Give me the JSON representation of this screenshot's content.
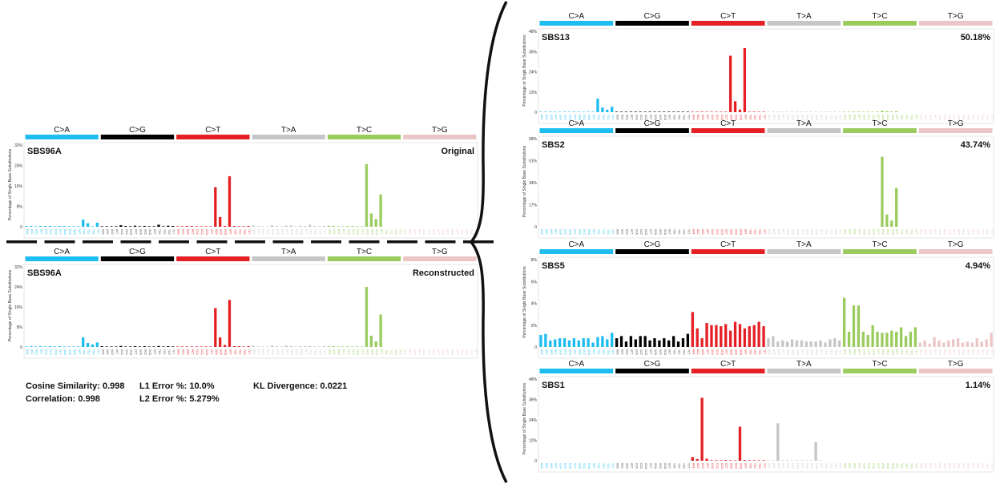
{
  "categories": [
    "C>A",
    "C>G",
    "C>T",
    "T>A",
    "T>C",
    "T>G"
  ],
  "category_colors": [
    "#1ebdf0",
    "#000000",
    "#e42025",
    "#c6c6c6",
    "#99cc5c",
    "#ecc6c6"
  ],
  "y_axis_label": "Percentage of Single Base Substitutions",
  "trinucleotide_contexts": [
    "ACA",
    "ACC",
    "ACG",
    "ACT",
    "CCA",
    "CCC",
    "CCG",
    "CCT",
    "GCA",
    "GCC",
    "GCG",
    "GCT",
    "TCA",
    "TCC",
    "TCG",
    "TCT"
  ],
  "metrics": {
    "cosine": "Cosine Similarity: 0.998",
    "correlation": "Correlation: 0.998",
    "l1": "L1 Error %: 10.0%",
    "l2": "L2 Error %: 5.279%",
    "kl": "KL Divergence: 0.0221"
  },
  "chart_data": [
    {
      "type": "bar",
      "id": "original",
      "title": "SBS96A",
      "label": "Original",
      "ylim": [
        0,
        32
      ],
      "yticks": [
        "0",
        "8%",
        "16%",
        "24%",
        "32%"
      ],
      "values": [
        0.3,
        0.3,
        0.2,
        0.3,
        0.3,
        0.3,
        0.2,
        0.3,
        0.3,
        0.2,
        0.2,
        0.2,
        2.8,
        1.4,
        0.2,
        1.6,
        0.2,
        0.2,
        0.2,
        0.2,
        0.6,
        0.3,
        0.2,
        0.4,
        0.2,
        0.3,
        0.2,
        0.2,
        0.8,
        0.2,
        0.4,
        0.3,
        0.2,
        0.2,
        0.3,
        0.3,
        0.2,
        0.2,
        0.2,
        0.2,
        15.5,
        3.8,
        0.3,
        19.8,
        0.3,
        0.2,
        0.2,
        0.3,
        0.5,
        0.2,
        0.2,
        0.2,
        0.6,
        0.3,
        0.2,
        0.5,
        0.5,
        0.2,
        0.4,
        0.3,
        0.8,
        0.3,
        0.2,
        0.3,
        0.4,
        0.3,
        0.2,
        0.2,
        0.3,
        0.3,
        0.2,
        0.2,
        24.5,
        5.2,
        3.0,
        12.7,
        0,
        0,
        0,
        0,
        0,
        0,
        0,
        0,
        0,
        0,
        0,
        0,
        0,
        0,
        0,
        0,
        0,
        0,
        0,
        0
      ]
    },
    {
      "type": "bar",
      "id": "reconstructed",
      "title": "SBS96A",
      "label": "Reconstructed",
      "ylim": [
        0,
        32
      ],
      "yticks": [
        "0",
        "8%",
        "16%",
        "24%",
        "32%"
      ],
      "values": [
        0.2,
        0.3,
        0.2,
        0.3,
        0.2,
        0.3,
        0.2,
        0.3,
        0.2,
        0.2,
        0.2,
        0.2,
        3.8,
        1.6,
        1.0,
        1.8,
        0.3,
        0.2,
        0.2,
        0.2,
        0.4,
        0.2,
        0.2,
        0.3,
        0.2,
        0.3,
        0.2,
        0.2,
        0.4,
        0.2,
        0.3,
        0.2,
        0.2,
        0.2,
        0.2,
        0.2,
        0.2,
        0.2,
        0.2,
        0.2,
        15.5,
        3.8,
        0.8,
        18.8,
        0.3,
        0.3,
        0.2,
        0.3,
        0.5,
        0.2,
        0.2,
        0.2,
        0.6,
        0.3,
        0.2,
        0.6,
        0.4,
        0.2,
        0.3,
        0.3,
        0.4,
        0.2,
        0.2,
        0.3,
        0.3,
        0.3,
        0.2,
        0.2,
        0.2,
        0.2,
        0.2,
        0.2,
        24.0,
        4.5,
        2.2,
        13.0,
        0,
        0,
        0,
        0,
        0,
        0,
        0,
        0,
        0,
        0,
        0,
        0,
        0,
        0,
        0,
        0,
        0,
        0,
        0,
        0
      ]
    },
    {
      "type": "bar",
      "id": "sbs13",
      "title": "SBS13",
      "label": "50.18%",
      "ylim": [
        0,
        48
      ],
      "yticks": [
        "0",
        "12%",
        "24%",
        "36%",
        "48%"
      ],
      "values": [
        0.3,
        0.2,
        0.2,
        0.3,
        0.2,
        0.2,
        0.2,
        0.2,
        0.3,
        0.2,
        0.2,
        0.2,
        8.0,
        2.8,
        1.5,
        3.2,
        0.3,
        0.2,
        0.2,
        0.3,
        0.3,
        0.2,
        0.2,
        0.3,
        0.2,
        0.2,
        0.2,
        0.2,
        0.3,
        0.2,
        0.2,
        0.2,
        0.2,
        0.2,
        0.2,
        0.2,
        0.2,
        0.2,
        0.2,
        0.2,
        33.5,
        6.5,
        1.5,
        38.0,
        0.2,
        0.2,
        0.2,
        0.2,
        0.2,
        0.2,
        0.2,
        0.2,
        0.2,
        0.2,
        0.2,
        0.2,
        0.3,
        0.2,
        0.2,
        0.3,
        0.3,
        0.2,
        0.2,
        0.2,
        0.3,
        0.2,
        0.2,
        0.2,
        0.3,
        0.2,
        0.2,
        0.2,
        0.8,
        0.5,
        0.4,
        0.5,
        0,
        0,
        0,
        0,
        0,
        0,
        0,
        0,
        0,
        0,
        0,
        0,
        0,
        0,
        0,
        0,
        0,
        0,
        0,
        0
      ]
    },
    {
      "type": "bar",
      "id": "sbs2",
      "title": "SBS2",
      "label": "43.74%",
      "ylim": [
        0,
        68
      ],
      "yticks": [
        "0",
        "17%",
        "34%",
        "51%",
        "68%"
      ],
      "values": [
        0,
        0,
        0,
        0,
        0,
        0,
        0,
        0,
        0,
        0,
        0,
        0,
        0,
        0,
        0,
        0,
        0,
        0,
        0,
        0,
        0,
        0,
        0,
        0,
        0,
        0,
        0,
        0,
        0,
        0,
        0,
        0,
        0,
        0,
        0,
        0,
        0,
        0,
        0,
        0,
        0,
        0,
        0,
        0,
        0,
        0,
        0,
        0,
        0,
        0,
        0,
        0,
        0,
        0,
        0,
        0,
        0,
        0,
        0,
        0,
        0,
        0,
        0,
        0,
        0,
        0,
        0,
        0,
        0,
        0,
        0,
        0,
        54.0,
        9.5,
        4.8,
        30.0,
        0,
        0,
        0,
        0,
        0,
        0,
        0,
        0,
        0,
        0,
        0,
        0,
        0,
        0,
        0,
        0,
        0,
        0,
        0,
        0
      ]
    },
    {
      "type": "bar",
      "id": "sbs5",
      "title": "SBS5",
      "label": "4.94%",
      "ylim": [
        0,
        8
      ],
      "yticks": [
        "0",
        "2%",
        "4%",
        "6%",
        "8%"
      ],
      "values": [
        1.1,
        1.2,
        0.6,
        0.7,
        0.8,
        0.8,
        0.6,
        0.8,
        0.6,
        0.8,
        0.8,
        0.4,
        0.9,
        1.0,
        0.7,
        1.3,
        0.8,
        1.0,
        0.5,
        1.0,
        0.7,
        1.0,
        1.0,
        0.6,
        0.8,
        0.6,
        0.8,
        0.6,
        1.0,
        0.5,
        0.8,
        1.2,
        3.2,
        1.7,
        0.8,
        2.2,
        2.0,
        2.0,
        1.9,
        2.1,
        1.5,
        2.3,
        2.1,
        1.7,
        1.9,
        2.0,
        2.3,
        1.9,
        0.8,
        1.0,
        0.5,
        0.6,
        0.5,
        0.7,
        0.6,
        0.6,
        0.5,
        0.5,
        0.5,
        0.6,
        0.4,
        0.7,
        0.8,
        0.6,
        4.5,
        1.4,
        3.8,
        3.8,
        1.4,
        1.1,
        2.0,
        1.4,
        1.3,
        1.3,
        1.5,
        1.4,
        1.8,
        1.0,
        1.4,
        1.8,
        0.4,
        0.6,
        0.3,
        0.9,
        0.6,
        0.4,
        0.6,
        0.7,
        0.8,
        0.4,
        0.5,
        0.4,
        0.8,
        0.5,
        0.7,
        1.3
      ]
    },
    {
      "type": "bar",
      "id": "sbs1",
      "title": "SBS1",
      "label": "1.14%",
      "ylim": [
        0,
        48
      ],
      "yticks": [
        "0",
        "12%",
        "24%",
        "36%",
        "48%"
      ],
      "values": [
        0,
        0,
        0,
        0,
        0,
        0,
        0,
        0,
        0,
        0,
        0,
        0,
        0,
        0,
        0,
        0,
        0,
        0,
        0,
        0,
        0,
        0,
        0,
        0,
        0,
        0,
        0,
        0,
        0,
        0,
        0,
        0,
        2.2,
        1.0,
        37.0,
        1.2,
        0.2,
        0.3,
        0.3,
        0.4,
        0.2,
        0.2,
        20.0,
        0.4,
        0.2,
        0.2,
        0.2,
        0.2,
        0.2,
        0.2,
        22.0,
        0.3,
        0.2,
        0.2,
        0.2,
        0.3,
        0.2,
        0.2,
        11.0,
        0.2,
        0,
        0,
        0,
        0,
        0,
        0,
        0,
        0,
        0,
        0,
        0,
        0,
        0,
        0,
        0,
        0,
        0,
        0,
        0,
        0,
        0,
        0,
        0,
        0,
        0,
        0,
        0,
        0,
        0,
        0,
        0,
        0,
        0,
        0,
        0,
        0
      ]
    }
  ]
}
